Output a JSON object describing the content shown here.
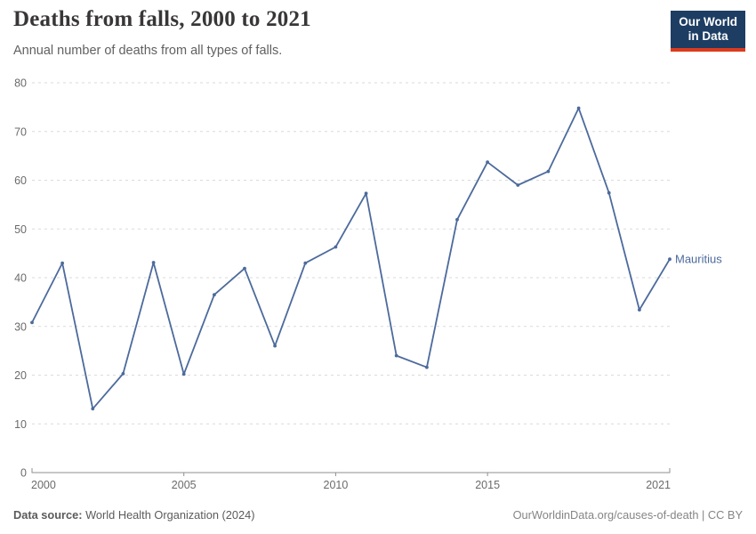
{
  "header": {
    "title": "Deaths from falls, 2000 to 2021",
    "subtitle": "Annual number of deaths from all types of falls.",
    "logo": {
      "line1": "Our World",
      "line2": "in Data"
    }
  },
  "chart_data": {
    "type": "line",
    "title": "Deaths from falls, 2000 to 2021",
    "subtitle": "Annual number of deaths from all types of falls.",
    "x": [
      2000,
      2001,
      2002,
      2003,
      2004,
      2005,
      2006,
      2007,
      2008,
      2009,
      2010,
      2011,
      2012,
      2013,
      2014,
      2015,
      2016,
      2017,
      2018,
      2019,
      2020,
      2021
    ],
    "series": [
      {
        "name": "Mauritius",
        "color": "#4C6A9C",
        "values": [
          30.8,
          43.0,
          13.1,
          20.3,
          43.1,
          20.2,
          36.5,
          41.9,
          26.0,
          43.0,
          46.3,
          57.3,
          24.0,
          21.6,
          51.9,
          63.7,
          59.0,
          61.8,
          74.8,
          57.4,
          33.4,
          43.8
        ]
      }
    ],
    "xlabel": "",
    "ylabel": "",
    "ylim": [
      0,
      80
    ],
    "yticks": [
      0,
      10,
      20,
      30,
      40,
      50,
      60,
      70,
      80
    ],
    "xticks": [
      2000,
      2005,
      2010,
      2015,
      2021
    ],
    "grid": "horizontal-dashed",
    "legend_position": "end-of-line-label"
  },
  "colors": {
    "line": "#4C6A9C",
    "logo_background": "#1d3d63",
    "logo_stripe": "#dc3b1e",
    "gridline": "#dadada",
    "axis": "#8f8f8f",
    "tick_label": "#6b6b6b"
  },
  "footer": {
    "source_label": "Data source:",
    "source_text": " World Health Organization (2024)",
    "credit": "OurWorldinData.org/causes-of-death | CC BY"
  }
}
